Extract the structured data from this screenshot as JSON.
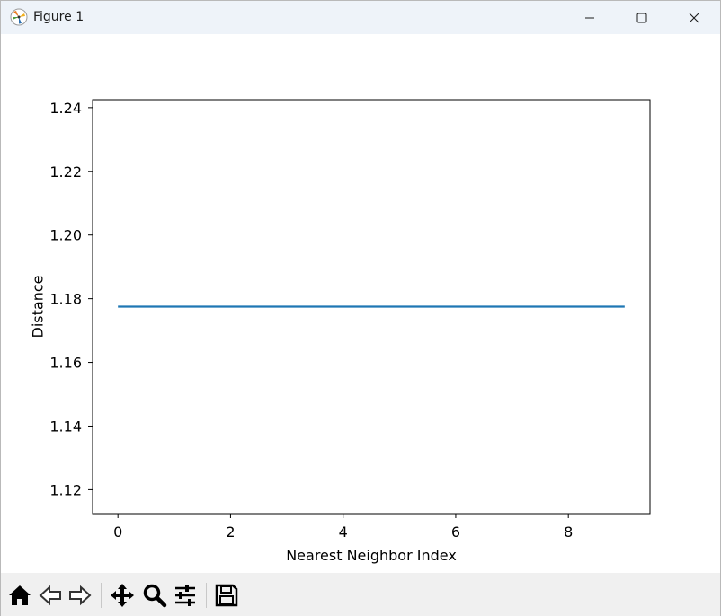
{
  "window": {
    "title": "Figure 1"
  },
  "toolbar": {
    "buttons": [
      {
        "name": "home-button",
        "icon": "home-icon"
      },
      {
        "name": "back-button",
        "icon": "back-arrow-icon"
      },
      {
        "name": "forward-button",
        "icon": "forward-arrow-icon"
      },
      {
        "name": "pan-button",
        "icon": "move-icon"
      },
      {
        "name": "zoom-button",
        "icon": "magnifier-icon"
      },
      {
        "name": "configure-subplots-button",
        "icon": "sliders-icon"
      },
      {
        "name": "save-button",
        "icon": "floppy-disk-icon"
      }
    ]
  },
  "chart_data": {
    "type": "line",
    "title": "",
    "xlabel": "Nearest Neighbor Index",
    "ylabel": "Distance",
    "xlim": [
      -0.45,
      9.45
    ],
    "ylim": [
      1.1125,
      1.2425
    ],
    "xticks": [
      0,
      2,
      4,
      6,
      8
    ],
    "xtick_labels": [
      "0",
      "2",
      "4",
      "6",
      "8"
    ],
    "yticks": [
      1.12,
      1.14,
      1.16,
      1.18,
      1.2,
      1.22,
      1.24
    ],
    "ytick_labels": [
      "1.12",
      "1.14",
      "1.16",
      "1.18",
      "1.20",
      "1.22",
      "1.24"
    ],
    "grid": false,
    "series": [
      {
        "color": "#1f77b4",
        "x": [
          0,
          1,
          2,
          3,
          4,
          5,
          6,
          7,
          8,
          9
        ],
        "y": [
          1.1775,
          1.1775,
          1.1775,
          1.1775,
          1.1775,
          1.1775,
          1.1775,
          1.1775,
          1.1775,
          1.1775
        ]
      }
    ]
  }
}
